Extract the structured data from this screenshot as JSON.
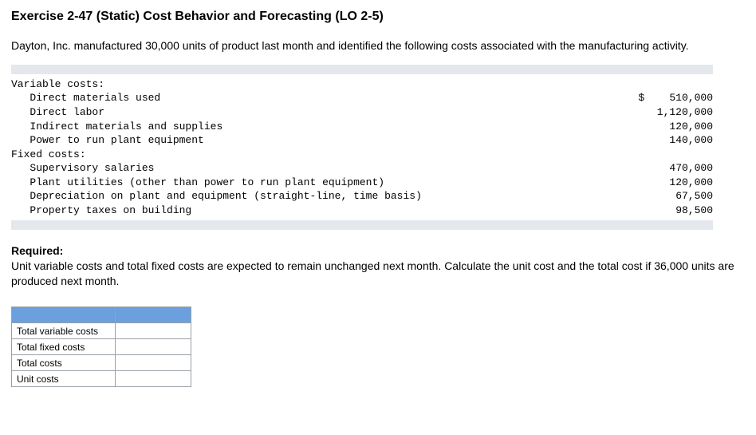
{
  "title": "Exercise 2-47 (Static) Cost Behavior and Forecasting (LO 2-5)",
  "intro": "Dayton, Inc. manufactured 30,000 units of product last month and identified the following costs associated with the manufacturing activity.",
  "costs": {
    "variable_header": "Variable costs:",
    "variable_items": [
      {
        "label": "   Direct materials used",
        "value": "$    510,000"
      },
      {
        "label": "   Direct labor",
        "value": "1,120,000"
      },
      {
        "label": "   Indirect materials and supplies",
        "value": "120,000"
      },
      {
        "label": "   Power to run plant equipment",
        "value": "140,000"
      }
    ],
    "fixed_header": "Fixed costs:",
    "fixed_items": [
      {
        "label": "   Supervisory salaries",
        "value": "470,000"
      },
      {
        "label": "   Plant utilities (other than power to run plant equipment)",
        "value": "120,000"
      },
      {
        "label": "   Depreciation on plant and equipment (straight-line, time basis)",
        "value": "67,500"
      },
      {
        "label": "   Property taxes on building",
        "value": "98,500"
      }
    ]
  },
  "required": {
    "header": "Required:",
    "text": "Unit variable costs and total fixed costs are expected to remain unchanged next month. Calculate the unit cost and the total cost if 36,000 units are produced next month."
  },
  "answer_rows": [
    "Total variable costs",
    "Total fixed costs",
    "Total costs",
    "Unit costs"
  ],
  "colors": {
    "header_blue": "#6b9fde",
    "bar_gray": "#e4e8ec",
    "border_gray": "#9aa0a6"
  }
}
